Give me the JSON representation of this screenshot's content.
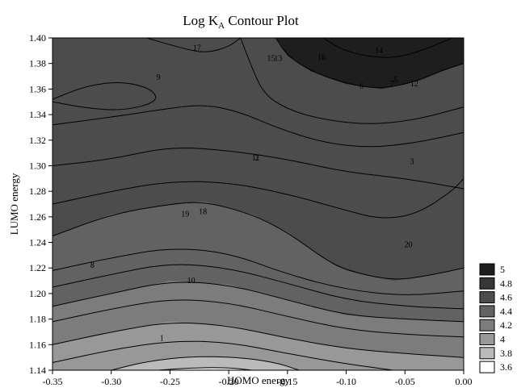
{
  "chart_data": {
    "type": "contour",
    "title": "Log K",
    "title_subscript": "A",
    "title_suffix": " Contour Plot",
    "xlabel": "HOMO energy",
    "ylabel": "LUMO energy",
    "xlim": [
      -0.35,
      0.0
    ],
    "ylim": [
      1.14,
      1.4
    ],
    "x_ticks": [
      "-0.35",
      "-0.30",
      "-0.25",
      "-0.20",
      "-0.15",
      "-0.10",
      "-0.05",
      "0.00"
    ],
    "y_ticks": [
      "1.14",
      "1.16",
      "1.18",
      "1.20",
      "1.22",
      "1.24",
      "1.26",
      "1.28",
      "1.30",
      "1.32",
      "1.34",
      "1.36",
      "1.38",
      "1.40"
    ],
    "grid": false,
    "legend_position": "right",
    "legend": [
      {
        "label": "5",
        "color": "#1e1e1e"
      },
      {
        "label": "4.8",
        "color": "#363636"
      },
      {
        "label": "4.6",
        "color": "#4c4c4c"
      },
      {
        "label": "4.4",
        "color": "#626262"
      },
      {
        "label": "4.2",
        "color": "#7c7c7c"
      },
      {
        "label": "4",
        "color": "#989898"
      },
      {
        "label": "3.8",
        "color": "#bababa"
      },
      {
        "label": "3.6",
        "color": "#ffffff"
      }
    ],
    "bands": [
      {
        "level": 4.8,
        "color": "#363636",
        "bottom": [],
        "top": []
      },
      {
        "level": 4.6,
        "color": "#4c4c4c",
        "bottom": [
          [
            -0.35,
            1.3
          ],
          [
            -0.3,
            1.305
          ],
          [
            -0.25,
            1.315
          ],
          [
            -0.2,
            1.312
          ],
          [
            -0.15,
            1.305
          ],
          [
            -0.1,
            1.295
          ],
          [
            -0.05,
            1.29
          ],
          [
            0.0,
            1.282
          ]
        ],
        "top": []
      },
      {
        "level": 4.4,
        "color": "#626262",
        "bottom": [
          [
            -0.35,
            1.245
          ],
          [
            -0.3,
            1.262
          ],
          [
            -0.25,
            1.27
          ],
          [
            -0.22,
            1.272
          ],
          [
            -0.18,
            1.262
          ],
          [
            -0.15,
            1.248
          ],
          [
            -0.12,
            1.228
          ],
          [
            -0.1,
            1.218
          ],
          [
            -0.06,
            1.21
          ],
          [
            -0.03,
            1.214
          ],
          [
            0.0,
            1.22
          ]
        ],
        "top": []
      },
      {
        "level": 4.2,
        "color": "#7c7c7c",
        "bottom": [
          [
            -0.35,
            1.19
          ],
          [
            -0.3,
            1.2
          ],
          [
            -0.25,
            1.21
          ],
          [
            -0.2,
            1.207
          ],
          [
            -0.15,
            1.195
          ],
          [
            -0.1,
            1.183
          ],
          [
            -0.05,
            1.18
          ],
          [
            0.0,
            1.178
          ]
        ],
        "top": []
      },
      {
        "level": 4.0,
        "color": "#989898",
        "bottom": [
          [
            -0.35,
            1.16
          ],
          [
            -0.3,
            1.17
          ],
          [
            -0.25,
            1.178
          ],
          [
            -0.2,
            1.175
          ],
          [
            -0.15,
            1.165
          ],
          [
            -0.1,
            1.157
          ],
          [
            -0.05,
            1.153
          ],
          [
            0.0,
            1.15
          ]
        ],
        "top": []
      },
      {
        "level": 3.8,
        "color": "#bababa",
        "bottom": [
          [
            -0.3,
            1.14
          ],
          [
            -0.27,
            1.147
          ],
          [
            -0.23,
            1.151
          ],
          [
            -0.19,
            1.15
          ],
          [
            -0.16,
            1.146
          ],
          [
            -0.14,
            1.14
          ]
        ],
        "top": []
      },
      {
        "level": 5.0,
        "color": "#1e1e1e",
        "bottom": [
          [
            -0.16,
            1.4
          ],
          [
            -0.15,
            1.386
          ],
          [
            -0.13,
            1.374
          ],
          [
            -0.1,
            1.364
          ],
          [
            -0.07,
            1.36
          ],
          [
            -0.04,
            1.366
          ],
          [
            -0.02,
            1.374
          ],
          [
            0.0,
            1.38
          ]
        ],
        "top": []
      }
    ],
    "contour_lines": [
      [
        [
          -0.35,
          1.3
        ],
        [
          -0.3,
          1.305
        ],
        [
          -0.25,
          1.315
        ],
        [
          -0.2,
          1.312
        ],
        [
          -0.15,
          1.305
        ],
        [
          -0.1,
          1.295
        ],
        [
          -0.05,
          1.29
        ],
        [
          0.0,
          1.282
        ]
      ],
      [
        [
          -0.35,
          1.27
        ],
        [
          -0.3,
          1.28
        ],
        [
          -0.25,
          1.288
        ],
        [
          -0.2,
          1.287
        ],
        [
          -0.15,
          1.278
        ],
        [
          -0.1,
          1.265
        ],
        [
          -0.07,
          1.258
        ],
        [
          -0.04,
          1.262
        ],
        [
          -0.01,
          1.28
        ],
        [
          0.0,
          1.29
        ]
      ],
      [
        [
          -0.35,
          1.245
        ],
        [
          -0.3,
          1.262
        ],
        [
          -0.25,
          1.27
        ],
        [
          -0.22,
          1.272
        ],
        [
          -0.18,
          1.262
        ],
        [
          -0.15,
          1.248
        ],
        [
          -0.12,
          1.228
        ],
        [
          -0.1,
          1.218
        ],
        [
          -0.06,
          1.21
        ],
        [
          -0.03,
          1.214
        ],
        [
          0.0,
          1.22
        ]
      ],
      [
        [
          -0.35,
          1.218
        ],
        [
          -0.3,
          1.228
        ],
        [
          -0.25,
          1.236
        ],
        [
          -0.2,
          1.232
        ],
        [
          -0.15,
          1.215
        ],
        [
          -0.1,
          1.203
        ],
        [
          -0.05,
          1.198
        ],
        [
          0.0,
          1.202
        ]
      ],
      [
        [
          -0.35,
          1.205
        ],
        [
          -0.3,
          1.215
        ],
        [
          -0.25,
          1.224
        ],
        [
          -0.2,
          1.22
        ],
        [
          -0.15,
          1.208
        ],
        [
          -0.1,
          1.195
        ],
        [
          -0.05,
          1.19
        ],
        [
          0.0,
          1.188
        ]
      ],
      [
        [
          -0.35,
          1.19
        ],
        [
          -0.3,
          1.2
        ],
        [
          -0.25,
          1.21
        ],
        [
          -0.2,
          1.207
        ],
        [
          -0.15,
          1.195
        ],
        [
          -0.1,
          1.183
        ],
        [
          -0.05,
          1.18
        ],
        [
          0.0,
          1.178
        ]
      ],
      [
        [
          -0.35,
          1.178
        ],
        [
          -0.3,
          1.188
        ],
        [
          -0.25,
          1.196
        ],
        [
          -0.2,
          1.193
        ],
        [
          -0.15,
          1.182
        ],
        [
          -0.1,
          1.172
        ],
        [
          -0.05,
          1.168
        ],
        [
          0.0,
          1.166
        ]
      ],
      [
        [
          -0.35,
          1.16
        ],
        [
          -0.3,
          1.17
        ],
        [
          -0.25,
          1.178
        ],
        [
          -0.2,
          1.175
        ],
        [
          -0.15,
          1.165
        ],
        [
          -0.1,
          1.157
        ],
        [
          -0.05,
          1.153
        ],
        [
          0.0,
          1.15
        ]
      ],
      [
        [
          -0.35,
          1.146
        ],
        [
          -0.3,
          1.156
        ],
        [
          -0.25,
          1.163
        ],
        [
          -0.2,
          1.162
        ],
        [
          -0.15,
          1.153
        ],
        [
          -0.1,
          1.145
        ],
        [
          -0.06,
          1.14
        ]
      ],
      [
        [
          -0.3,
          1.14
        ],
        [
          -0.27,
          1.147
        ],
        [
          -0.23,
          1.151
        ],
        [
          -0.19,
          1.15
        ],
        [
          -0.16,
          1.146
        ],
        [
          -0.14,
          1.14
        ]
      ],
      [
        [
          -0.26,
          1.14
        ],
        [
          -0.23,
          1.142
        ],
        [
          -0.2,
          1.142
        ],
        [
          -0.18,
          1.14
        ]
      ],
      [
        [
          -0.35,
          1.332
        ],
        [
          -0.3,
          1.338
        ],
        [
          -0.25,
          1.345
        ],
        [
          -0.22,
          1.348
        ],
        [
          -0.19,
          1.342
        ],
        [
          -0.16,
          1.33
        ],
        [
          -0.12,
          1.318
        ],
        [
          -0.08,
          1.314
        ],
        [
          -0.04,
          1.318
        ],
        [
          0.0,
          1.326
        ]
      ],
      [
        [
          -0.35,
          1.352
        ],
        [
          -0.32,
          1.363
        ],
        [
          -0.29,
          1.366
        ],
        [
          -0.265,
          1.36
        ],
        [
          -0.26,
          1.35
        ],
        [
          -0.29,
          1.343
        ],
        [
          -0.32,
          1.345
        ],
        [
          -0.35,
          1.35
        ]
      ],
      [
        [
          -0.27,
          1.4
        ],
        [
          -0.24,
          1.392
        ],
        [
          -0.22,
          1.388
        ],
        [
          -0.2,
          1.393
        ],
        [
          -0.19,
          1.4
        ]
      ],
      [
        [
          -0.19,
          1.4
        ],
        [
          -0.18,
          1.376
        ],
        [
          -0.17,
          1.356
        ],
        [
          -0.15,
          1.344
        ],
        [
          -0.12,
          1.336
        ],
        [
          -0.08,
          1.332
        ],
        [
          -0.04,
          1.336
        ],
        [
          0.0,
          1.346
        ]
      ],
      [
        [
          -0.16,
          1.4
        ],
        [
          -0.15,
          1.386
        ],
        [
          -0.13,
          1.374
        ],
        [
          -0.1,
          1.364
        ],
        [
          -0.07,
          1.36
        ],
        [
          -0.04,
          1.366
        ],
        [
          -0.02,
          1.374
        ],
        [
          0.0,
          1.38
        ]
      ],
      [
        [
          -0.12,
          1.4
        ],
        [
          -0.1,
          1.389
        ],
        [
          -0.07,
          1.384
        ],
        [
          -0.05,
          1.386
        ],
        [
          -0.03,
          1.392
        ],
        [
          -0.01,
          1.4
        ]
      ]
    ],
    "line_labels": [
      {
        "text": "17",
        "x": -0.227,
        "y": 1.392
      },
      {
        "text": "9",
        "x": -0.26,
        "y": 1.369
      },
      {
        "text": "15",
        "x": -0.164,
        "y": 1.384
      },
      {
        "text": "13",
        "x": -0.158,
        "y": 1.384
      },
      {
        "text": "16",
        "x": -0.121,
        "y": 1.385
      },
      {
        "text": "14",
        "x": -0.072,
        "y": 1.39
      },
      {
        "text": "6",
        "x": -0.087,
        "y": 1.362
      },
      {
        "text": "7",
        "x": -0.061,
        "y": 1.364
      },
      {
        "text": "5",
        "x": -0.058,
        "y": 1.367
      },
      {
        "text": "12",
        "x": -0.042,
        "y": 1.364
      },
      {
        "text": "11",
        "x": -0.177,
        "y": 1.306
      },
      {
        "text": "2",
        "x": -0.176,
        "y": 1.306
      },
      {
        "text": "3",
        "x": -0.044,
        "y": 1.303
      },
      {
        "text": "19",
        "x": -0.237,
        "y": 1.262
      },
      {
        "text": "18",
        "x": -0.222,
        "y": 1.264
      },
      {
        "text": "20",
        "x": -0.047,
        "y": 1.238
      },
      {
        "text": "8",
        "x": -0.316,
        "y": 1.222
      },
      {
        "text": "10",
        "x": -0.232,
        "y": 1.21
      },
      {
        "text": "1",
        "x": -0.257,
        "y": 1.165
      }
    ]
  }
}
